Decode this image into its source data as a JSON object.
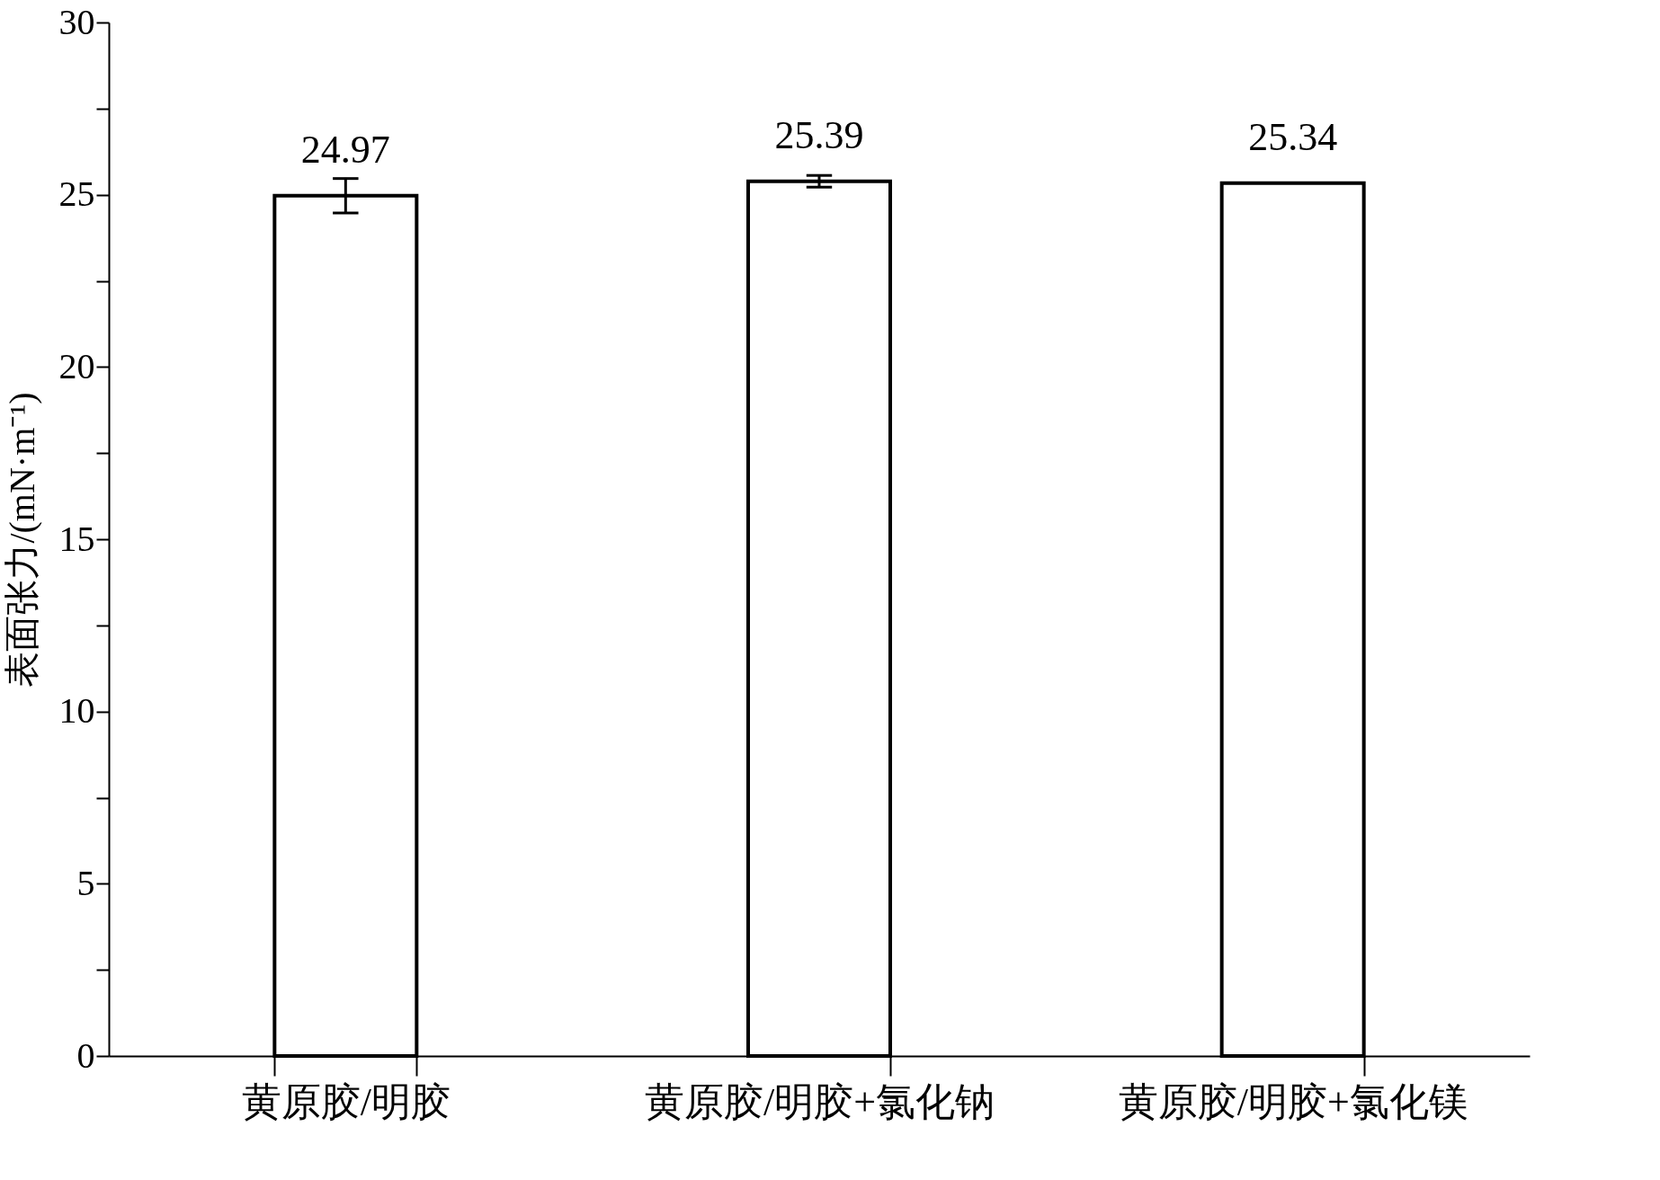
{
  "chart_data": {
    "type": "bar",
    "ylabel": "表面张力/(mN·m⁻¹)",
    "categories": [
      "黄原胶/明胶",
      "黄原胶/明胶+氯化钠",
      "黄原胶/明胶+氯化镁"
    ],
    "values": [
      24.97,
      25.39,
      25.34
    ],
    "errors": [
      0.5,
      0.17,
      null
    ],
    "color": "#ffffff",
    "data_labels": true,
    "ylim": [
      0,
      30
    ],
    "yticks": [
      0,
      {
        "value": 2.5,
        "label": null
      },
      5,
      {
        "value": 7.5,
        "label": null
      },
      10,
      {
        "value": 12.5,
        "label": null
      },
      15,
      {
        "value": 17.5,
        "label": null
      },
      20,
      {
        "value": 22.5,
        "label": null
      },
      25,
      {
        "value": 27.5,
        "label": null
      },
      30
    ],
    "grid": false
  }
}
